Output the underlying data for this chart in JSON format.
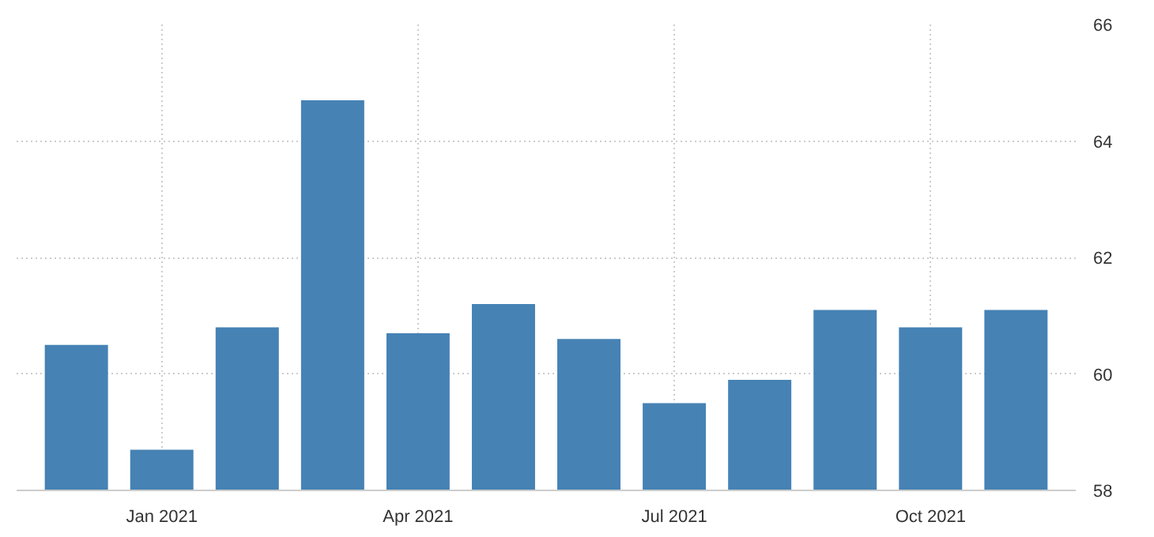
{
  "chart_data": {
    "type": "bar",
    "categories": [
      null,
      "Jan 2021",
      null,
      null,
      "Apr 2021",
      null,
      null,
      "Jul 2021",
      null,
      null,
      "Oct 2021",
      null
    ],
    "values": [
      60.5,
      58.7,
      60.8,
      64.7,
      60.7,
      61.2,
      60.6,
      59.5,
      59.9,
      61.1,
      60.8,
      61.1
    ],
    "color": "#4682b4",
    "ylim": [
      58,
      66
    ],
    "yticks": [
      58,
      60,
      62,
      64,
      66
    ],
    "grid": true
  }
}
